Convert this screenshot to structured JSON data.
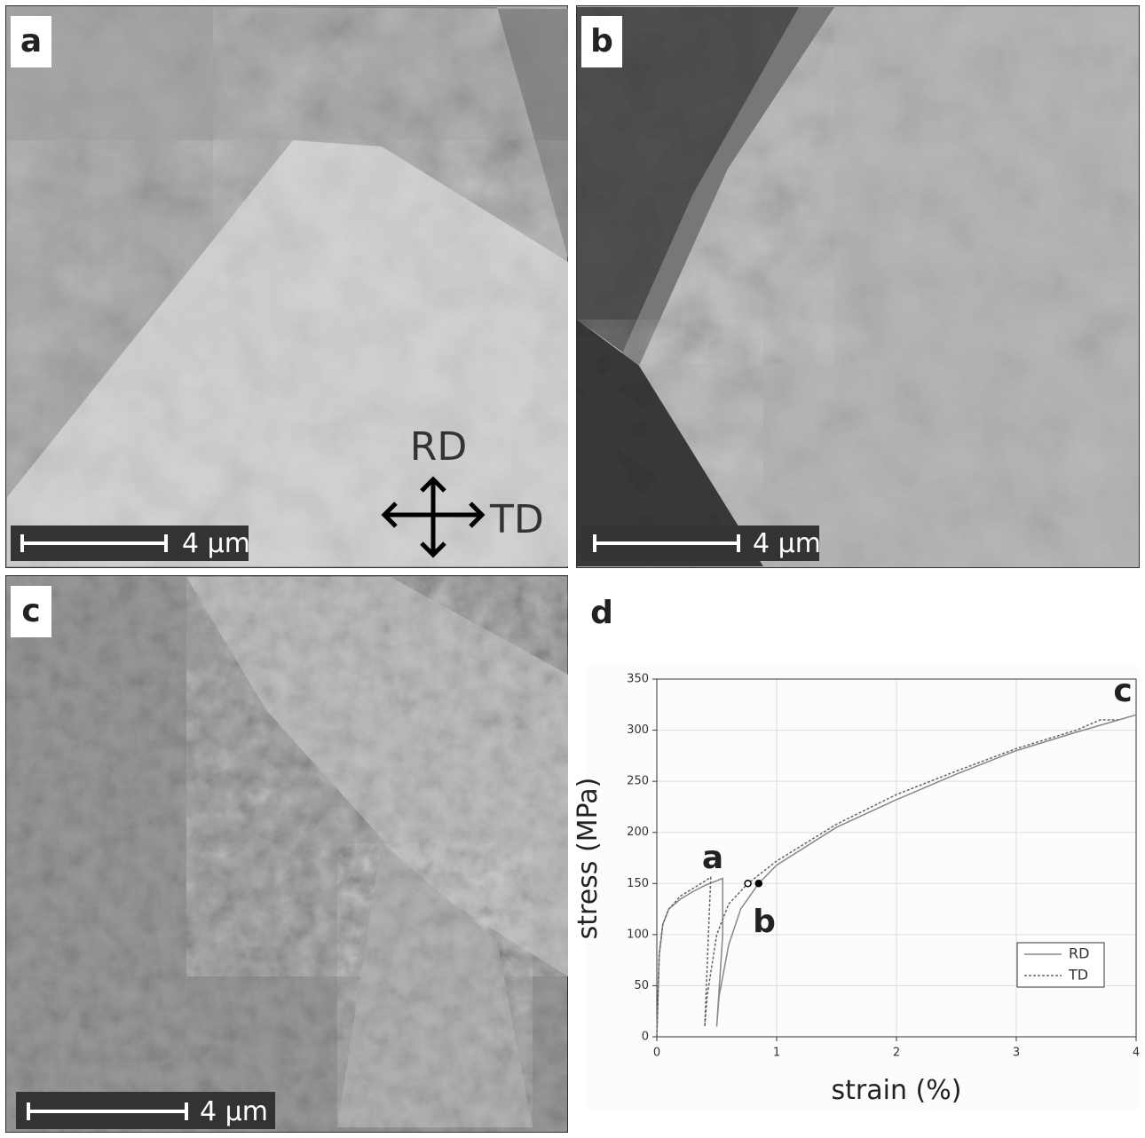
{
  "panels": [
    {
      "label": "a",
      "scale_bar": "4 μm",
      "directions": [
        "RD",
        "TD"
      ]
    },
    {
      "label": "b",
      "scale_bar": "4 μm"
    },
    {
      "label": "c",
      "scale_bar": "4 μm"
    },
    {
      "label": "d"
    }
  ],
  "chart_data": {
    "type": "line",
    "x_label": "strain (%)",
    "y_label": "stress (MPa)",
    "xlim": [
      0,
      4
    ],
    "ylim": [
      0,
      350
    ],
    "xticks": [
      0,
      1,
      2,
      3,
      4
    ],
    "yticks": [
      0,
      50,
      100,
      150,
      200,
      250,
      300,
      350
    ],
    "grid": true,
    "legend": "lower right",
    "series": [
      {
        "name": "RD",
        "color": "#888888",
        "dash": false,
        "x": [
          0,
          0.02,
          0.05,
          0.1,
          0.2,
          0.3,
          0.4,
          0.55,
          0.55,
          0.5,
          0.52,
          0.6,
          0.7,
          0.85,
          1,
          1.5,
          2,
          2.5,
          3,
          3.5,
          4
        ],
        "values": [
          0,
          80,
          110,
          125,
          135,
          142,
          148,
          155,
          100,
          10,
          40,
          90,
          125,
          150,
          168,
          205,
          232,
          257,
          280,
          298,
          315
        ]
      },
      {
        "name": "TD",
        "color": "#666666",
        "dash": true,
        "x": [
          0,
          0.02,
          0.05,
          0.1,
          0.2,
          0.3,
          0.45,
          0.4,
          0.42,
          0.5,
          0.6,
          0.76,
          1,
          1.5,
          2,
          2.5,
          3,
          3.5,
          3.7,
          3.85
        ],
        "values": [
          0,
          80,
          110,
          125,
          138,
          145,
          156,
          10,
          40,
          100,
          130,
          150,
          172,
          208,
          237,
          260,
          282,
          300,
          310,
          310
        ]
      }
    ],
    "points_x": [
      0.76,
      0.85
    ],
    "points_y": [
      150,
      150
    ],
    "annotations": [
      "a",
      "b",
      "c"
    ]
  }
}
